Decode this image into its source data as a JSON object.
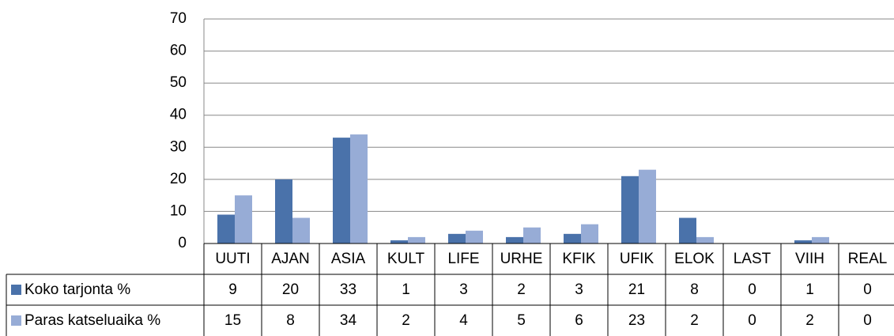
{
  "chart_data": {
    "type": "bar",
    "categories": [
      "UUTI",
      "AJAN",
      "ASIA",
      "KULT",
      "LIFE",
      "URHE",
      "KFIK",
      "UFIK",
      "ELOK",
      "LAST",
      "VIIH",
      "REAL"
    ],
    "series": [
      {
        "name": "Koko tarjonta %",
        "color": "#4a72aa",
        "values": [
          9,
          20,
          33,
          1,
          3,
          2,
          3,
          21,
          8,
          0,
          1,
          0
        ]
      },
      {
        "name": "Paras katseluaika %",
        "color": "#97acd6",
        "values": [
          15,
          8,
          34,
          2,
          4,
          5,
          6,
          23,
          2,
          0,
          2,
          0
        ]
      }
    ],
    "ylim": [
      0,
      70
    ],
    "yticks": [
      0,
      10,
      20,
      30,
      40,
      50,
      60,
      70
    ],
    "grid": true
  }
}
